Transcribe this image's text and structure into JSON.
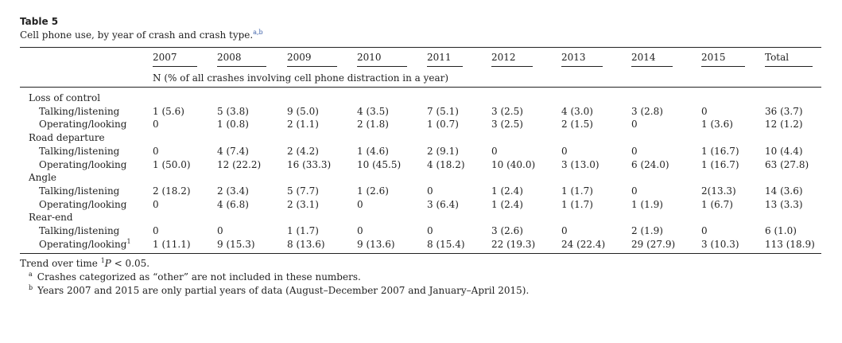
{
  "title": "Table 5",
  "caption": {
    "text": "Cell phone use, by year of crash and crash type.",
    "sup": "a,b"
  },
  "table": {
    "columns": [
      "2007",
      "2008",
      "2009",
      "2010",
      "2011",
      "2012",
      "2013",
      "2014",
      "2015",
      "Total"
    ],
    "subheader": "N (% of all crashes involving cell phone distraction in a year)",
    "groups": [
      {
        "name": "Loss of control",
        "rows": [
          {
            "label": "Talking/listening",
            "cells": [
              "1 (5.6)",
              "5 (3.8)",
              "9 (5.0)",
              "4 (3.5)",
              "7 (5.1)",
              "3 (2.5)",
              "4 (3.0)",
              "3 (2.8)",
              "0",
              "36 (3.7)"
            ]
          },
          {
            "label": "Operating/looking",
            "cells": [
              "0",
              "1 (0.8)",
              "2 (1.1)",
              "2 (1.8)",
              "1 (0.7)",
              "3 (2.5)",
              "2 (1.5)",
              "0",
              "1 (3.6)",
              "12 (1.2)"
            ]
          }
        ]
      },
      {
        "name": "Road departure",
        "rows": [
          {
            "label": "Talking/listening",
            "cells": [
              "0",
              "4 (7.4)",
              "2 (4.2)",
              "1 (4.6)",
              "2 (9.1)",
              "0",
              "0",
              "0",
              "1 (16.7)",
              "10 (4.4)"
            ]
          },
          {
            "label": "Operating/looking",
            "cells": [
              "1 (50.0)",
              "12 (22.2)",
              "16 (33.3)",
              "10 (45.5)",
              "4 (18.2)",
              "10 (40.0)",
              "3 (13.0)",
              "6 (24.0)",
              "1 (16.7)",
              "63 (27.8)"
            ]
          }
        ]
      },
      {
        "name": "Angle",
        "rows": [
          {
            "label": "Talking/listening",
            "cells": [
              "2 (18.2)",
              "2 (3.4)",
              "5 (7.7)",
              "1 (2.6)",
              "0",
              "1 (2.4)",
              "1 (1.7)",
              "0",
              "2(13.3)",
              "14 (3.6)"
            ]
          },
          {
            "label": "Operating/looking",
            "cells": [
              "0",
              "4 (6.8)",
              "2 (3.1)",
              "0",
              "3 (6.4)",
              "1 (2.4)",
              "1 (1.7)",
              "1 (1.9)",
              "1 (6.7)",
              "13 (3.3)"
            ]
          }
        ]
      },
      {
        "name": "Rear-end",
        "rows": [
          {
            "label": "Talking/listening",
            "cells": [
              "0",
              "0",
              "1 (1.7)",
              "0",
              "0",
              "3 (2.6)",
              "0",
              "2 (1.9)",
              "0",
              "6 (1.0)"
            ]
          },
          {
            "label": "Operating/looking",
            "label_sup": "1",
            "cells": [
              "1 (11.1)",
              "9 (15.3)",
              "8 (13.6)",
              "9 (13.6)",
              "8 (15.4)",
              "22 (19.3)",
              "24 (22.4)",
              "29 (27.9)",
              "3 (10.3)",
              "113 (18.9)"
            ]
          }
        ]
      }
    ]
  },
  "footnotes": {
    "trend": {
      "text": "Trend over time ",
      "sup": "1",
      "p": "P",
      "rest": " < 0.05."
    },
    "notes": [
      {
        "marker": "a",
        "text": "Crashes categorized as “other” are not included in these numbers."
      },
      {
        "marker": "b",
        "text": "Years 2007 and 2015 are only partial years of data (August–December 2007 and January–April 2015)."
      }
    ]
  }
}
